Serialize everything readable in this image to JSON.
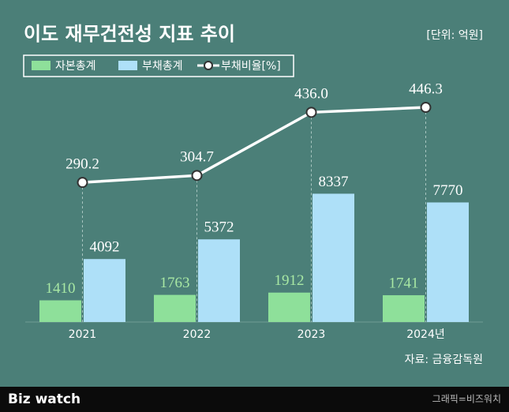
{
  "chart_data": {
    "type": "bar",
    "title": "이도 재무건전성 지표 추이",
    "unit": "[단위: 억원]",
    "categories": [
      "2021",
      "2022",
      "2023",
      "2024년"
    ],
    "series": [
      {
        "name": "자본총계",
        "color": "#8ee09a",
        "values": [
          1410,
          1763,
          1912,
          1741
        ]
      },
      {
        "name": "부채총계",
        "color": "#aee0f8",
        "values": [
          4092,
          5372,
          8337,
          7770
        ]
      },
      {
        "name": "부채비율[%]",
        "type": "line",
        "axis": "y2",
        "color": "#ffffff",
        "values": [
          290.2,
          304.7,
          436.0,
          446.3
        ],
        "value_labels": [
          "290.2",
          "304.7",
          "436.0",
          "446.3"
        ]
      }
    ],
    "ylim": [
      0,
      10000
    ],
    "y2lim": [
      0,
      320
    ]
  },
  "source": "자료: 금융감독원",
  "footer": {
    "logo": "Biz watch",
    "credit": "그래픽=비즈워치"
  }
}
